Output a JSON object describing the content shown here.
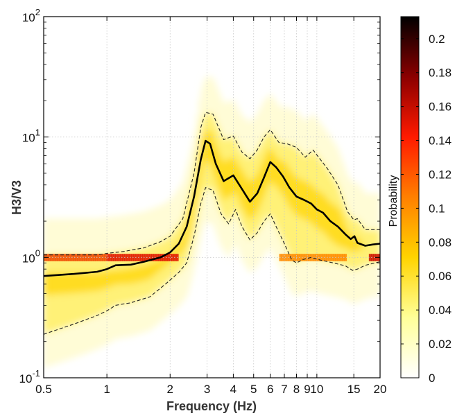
{
  "chart_data": {
    "type": "heatmap",
    "title": "",
    "xlabel": "Frequency (Hz)",
    "ylabel": "H3/V3",
    "x_scale": "log",
    "y_scale": "log",
    "xlim": [
      0.5,
      20
    ],
    "ylim": [
      0.1,
      100
    ],
    "grid": true,
    "x_ticks": [
      {
        "value": 0.5,
        "label": "0.5"
      },
      {
        "value": 1,
        "label": "1"
      },
      {
        "value": 2,
        "label": "2"
      },
      {
        "value": 3,
        "label": "3"
      },
      {
        "value": 4,
        "label": "4"
      },
      {
        "value": 5,
        "label": "5"
      },
      {
        "value": 6,
        "label": "6"
      },
      {
        "value": 7,
        "label": "7"
      },
      {
        "value": 8,
        "label": "8"
      },
      {
        "value": 9,
        "label": "9"
      },
      {
        "value": 10,
        "label": "10"
      },
      {
        "value": 15,
        "label": "15"
      },
      {
        "value": 20,
        "label": "20"
      }
    ],
    "y_ticks": [
      {
        "value": 0.1,
        "base": "10",
        "exp": "-1"
      },
      {
        "value": 1,
        "base": "10",
        "exp": "0"
      },
      {
        "value": 10,
        "base": "10",
        "exp": "1"
      },
      {
        "value": 100,
        "base": "10",
        "exp": "2"
      }
    ],
    "colorbar": {
      "label": "Probability",
      "min": 0,
      "max": 0.213,
      "ticks": [
        "0",
        "0.02",
        "0.04",
        "0.06",
        "0.08",
        "0.1",
        "0.12",
        "0.14",
        "0.16",
        "0.18",
        "0.2"
      ],
      "tick_values": [
        0,
        0.02,
        0.04,
        0.06,
        0.08,
        0.1,
        0.12,
        0.14,
        0.16,
        0.18,
        0.2
      ],
      "colormap": [
        "#ffffff",
        "#ffff99",
        "#ffd400",
        "#ff8000",
        "#ff1a00",
        "#8b0000",
        "#000000"
      ]
    },
    "series": [
      {
        "style": "solid",
        "color": "#000000",
        "x": [
          0.5,
          0.7,
          0.9,
          1.0,
          1.1,
          1.3,
          1.5,
          1.8,
          2.0,
          2.2,
          2.4,
          2.6,
          2.8,
          2.95,
          3.1,
          3.3,
          3.6,
          4.0,
          4.4,
          4.8,
          5.2,
          5.6,
          6.0,
          6.4,
          6.9,
          7.4,
          8.0,
          8.7,
          9.4,
          10.0,
          10.7,
          11.6,
          12.6,
          13.7,
          14.5,
          15.1,
          15.6,
          17.0,
          18.5,
          20.0
        ],
        "y": [
          0.7,
          0.73,
          0.76,
          0.8,
          0.86,
          0.87,
          0.92,
          1.0,
          1.1,
          1.3,
          1.8,
          3.2,
          6.5,
          9.3,
          8.8,
          6.0,
          4.3,
          4.8,
          3.7,
          2.9,
          3.4,
          4.6,
          6.2,
          5.6,
          4.7,
          3.8,
          3.2,
          3.0,
          2.8,
          2.5,
          2.35,
          2.0,
          1.8,
          1.55,
          1.42,
          1.5,
          1.32,
          1.25,
          1.28,
          1.3
        ]
      },
      {
        "style": "dashed",
        "color": "#222222",
        "x": [
          0.5,
          0.9,
          1.0,
          1.2,
          1.5,
          1.8,
          2.0,
          2.3,
          2.6,
          2.8,
          2.95,
          3.2,
          3.6,
          4.0,
          4.4,
          4.8,
          5.2,
          5.6,
          6.0,
          6.6,
          7.2,
          8.0,
          8.8,
          9.6,
          10.4,
          11.2,
          12.6,
          14.0,
          15.0,
          15.6,
          17.0,
          20.0
        ],
        "y": [
          1.05,
          1.05,
          1.08,
          1.12,
          1.2,
          1.35,
          1.5,
          2.1,
          5.0,
          12.0,
          16.0,
          15.5,
          9.5,
          10.2,
          7.5,
          6.6,
          7.8,
          10.0,
          11.5,
          9.0,
          8.8,
          8.2,
          6.8,
          7.8,
          6.5,
          5.5,
          4.0,
          2.4,
          2.05,
          2.1,
          1.7,
          1.7
        ]
      },
      {
        "style": "dashed",
        "color": "#222222",
        "x": [
          0.5,
          0.7,
          0.9,
          1.0,
          1.1,
          1.3,
          1.6,
          1.9,
          2.2,
          2.4,
          2.6,
          2.8,
          2.95,
          3.2,
          3.5,
          3.8,
          4.1,
          4.4,
          4.8,
          5.2,
          5.6,
          6.0,
          6.4,
          7.0,
          7.6,
          8.0,
          8.6,
          9.4,
          10.4,
          12.0,
          13.7,
          14.8,
          15.6,
          17.0,
          20.0
        ],
        "y": [
          0.23,
          0.28,
          0.33,
          0.36,
          0.4,
          0.42,
          0.47,
          0.6,
          0.75,
          0.9,
          1.5,
          2.8,
          3.8,
          3.6,
          2.3,
          1.9,
          2.5,
          1.8,
          1.4,
          1.6,
          2.0,
          2.3,
          1.8,
          1.3,
          0.95,
          0.9,
          0.96,
          1.0,
          0.95,
          0.9,
          0.85,
          0.78,
          0.8,
          0.86,
          0.92
        ]
      }
    ]
  }
}
